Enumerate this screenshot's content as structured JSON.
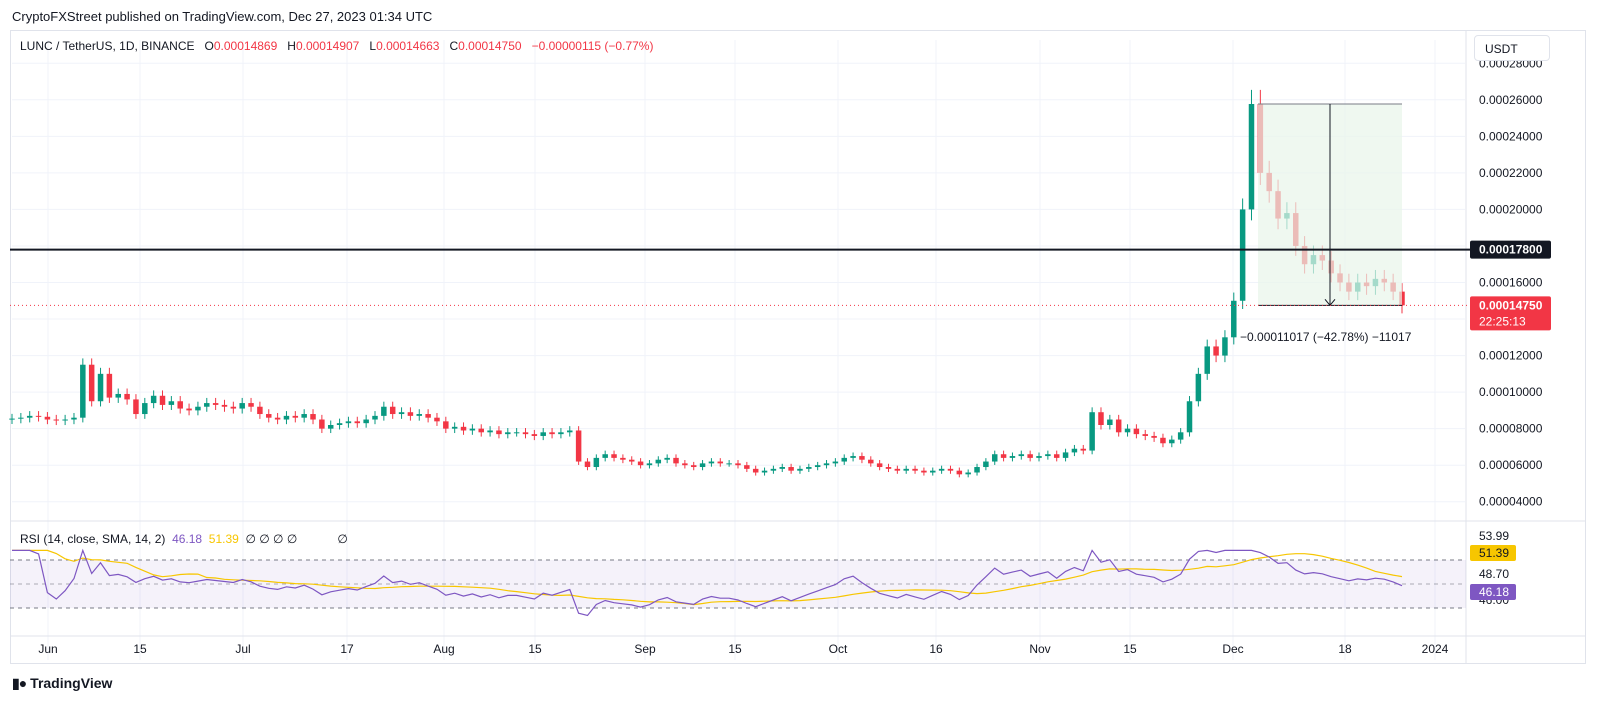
{
  "header": {
    "publisher": "CryptoFXStreet published on TradingView.com, Dec 27, 2023 01:34 UTC"
  },
  "legend": {
    "symbol": "LUNC / TetherUS, 1D, BINANCE",
    "open_label": "O",
    "open": "0.00014869",
    "high_label": "H",
    "high": "0.00014907",
    "low_label": "L",
    "low": "0.00014663",
    "close_label": "C",
    "close": "0.00014750",
    "change": "−0.00000115 (−0.77%)"
  },
  "currency_button": "USDT",
  "price_axis": {
    "ticks": [
      "0.00028000",
      "0.00026000",
      "0.00024000",
      "0.00022000",
      "0.00020000",
      "0.00016000",
      "0.00012000",
      "0.00010000",
      "0.00008000",
      "0.00006000",
      "0.00004000"
    ],
    "horizontal_line_label": "0.00017800",
    "last_price_label": "0.00014750",
    "countdown": "22:25:13"
  },
  "measure_label": "−0.00011017 (−42.78%) −11017",
  "rsi": {
    "title": "RSI (14, close, SMA, 14, 2)",
    "rsi_value": "46.18",
    "sma_value": "51.39",
    "placeholders": "∅ ∅ ∅ ∅",
    "placeholder_extra": "∅",
    "axis_ticks": [
      "53.99",
      "48.70",
      "46.00"
    ],
    "rsi_tag": "46.18",
    "sma_tag": "51.39"
  },
  "time_axis": {
    "labels": [
      "Jun",
      "15",
      "Jul",
      "17",
      "Aug",
      "15",
      "Sep",
      "15",
      "Oct",
      "16",
      "Nov",
      "15",
      "Dec",
      "18",
      "2024"
    ]
  },
  "footer": {
    "logo": "TradingView"
  },
  "colors": {
    "up": "#089981",
    "down": "#f23645",
    "rsi": "#7e57c2",
    "rsi_sma": "#f7c600",
    "measure_fill": "#e8f5e9"
  },
  "chart_data": {
    "type": "candlestick",
    "title": "LUNC / TetherUS, 1D, BINANCE",
    "ylim": [
      3e-05,
      0.00029
    ],
    "horizontal_line": 0.000178,
    "last_close": 0.0001475,
    "measure": {
      "from": 0.0002577,
      "to": 0.0001475,
      "change": -0.00011017,
      "percent": -42.78
    },
    "series": [
      {
        "name": "price",
        "close": [
          8.55e-05,
          8.6e-05,
          8.7e-05,
          8.65e-05,
          8.5e-05,
          8.45e-05,
          8.5e-05,
          8.6e-05,
          0.000115,
          9.5e-05,
          0.00011,
          9.7e-05,
          9.9e-05,
          9.6e-05,
          8.8e-05,
          9.4e-05,
          9.8e-05,
          9.3e-05,
          9.5e-05,
          9.1e-05,
          9e-05,
          9.2e-05,
          9.4e-05,
          9.3e-05,
          9.2e-05,
          9.1e-05,
          9.4e-05,
          9.2e-05,
          8.8e-05,
          8.6e-05,
          8.5e-05,
          8.7e-05,
          8.6e-05,
          8.8e-05,
          8.5e-05,
          8e-05,
          8.2e-05,
          8.3e-05,
          8.4e-05,
          8.3e-05,
          8.5e-05,
          8.7e-05,
          9.2e-05,
          8.8e-05,
          8.9e-05,
          8.7e-05,
          8.8e-05,
          8.6e-05,
          8.4e-05,
          8e-05,
          8.1e-05,
          7.9e-05,
          8e-05,
          7.8e-05,
          7.9e-05,
          7.7e-05,
          7.8e-05,
          7.8e-05,
          7.7e-05,
          7.6e-05,
          7.8e-05,
          7.7e-05,
          7.8e-05,
          7.9e-05,
          6.2e-05,
          5.9e-05,
          6.4e-05,
          6.6e-05,
          6.4e-05,
          6.3e-05,
          6.2e-05,
          6e-05,
          6.1e-05,
          6.3e-05,
          6.4e-05,
          6.1e-05,
          6e-05,
          5.9e-05,
          6.1e-05,
          6.2e-05,
          6.1e-05,
          6.1e-05,
          6e-05,
          5.8e-05,
          5.6e-05,
          5.7e-05,
          5.8e-05,
          5.9e-05,
          5.7e-05,
          5.8e-05,
          5.9e-05,
          6e-05,
          6.1e-05,
          6.2e-05,
          6.4e-05,
          6.5e-05,
          6.3e-05,
          6.1e-05,
          5.9e-05,
          5.8e-05,
          5.7e-05,
          5.8e-05,
          5.7e-05,
          5.6e-05,
          5.7e-05,
          5.8e-05,
          5.7e-05,
          5.5e-05,
          5.6e-05,
          5.9e-05,
          6.2e-05,
          6.6e-05,
          6.4e-05,
          6.5e-05,
          6.6e-05,
          6.4e-05,
          6.5e-05,
          6.6e-05,
          6.4e-05,
          6.7e-05,
          6.9e-05,
          6.8e-05,
          8.9e-05,
          8.2e-05,
          8.5e-05,
          7.8e-05,
          8e-05,
          7.7e-05,
          7.6e-05,
          7.5e-05,
          7.2e-05,
          7.4e-05,
          7.8e-05,
          9.5e-05,
          0.00011,
          0.000125,
          0.00012,
          0.00013,
          0.00015,
          0.0002,
          0.0002577,
          0.00022,
          0.00021,
          0.000195,
          0.000198,
          0.00018,
          0.00017,
          0.000175,
          0.000172,
          0.000165,
          0.00016,
          0.000155,
          0.00016,
          0.000158,
          0.000162,
          0.00016,
          0.000155,
          0.0001475
        ]
      }
    ]
  }
}
